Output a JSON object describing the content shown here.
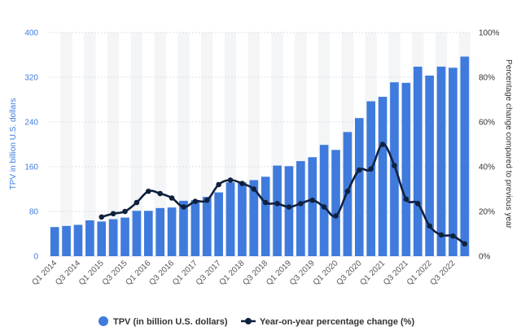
{
  "chart_data": {
    "type": "bar",
    "title": "",
    "categories": [
      "Q1 2014",
      "Q2 2014",
      "Q3 2014",
      "Q4 2014",
      "Q1 2015",
      "Q2 2015",
      "Q3 2015",
      "Q4 2015",
      "Q1 2016",
      "Q2 2016",
      "Q3 2016",
      "Q4 2016",
      "Q1 2017",
      "Q2 2017",
      "Q3 2017",
      "Q4 2017",
      "Q1 2018",
      "Q2 2018",
      "Q3 2018",
      "Q4 2018",
      "Q1 2019",
      "Q2 2019",
      "Q3 2019",
      "Q4 2019",
      "Q1 2020",
      "Q2 2020",
      "Q3 2020",
      "Q4 2020",
      "Q1 2021",
      "Q2 2021",
      "Q3 2021",
      "Q4 2021",
      "Q1 2022",
      "Q2 2022",
      "Q3 2022",
      "Q4 2022"
    ],
    "x_tick_labels": [
      "Q1 2014",
      "Q3 2014",
      "Q1 2015",
      "Q3 2015",
      "Q1 2016",
      "Q3 2016",
      "Q1 2017",
      "Q3 2017",
      "Q1 2018",
      "Q3 2018",
      "Q1 2019",
      "Q3 2019",
      "Q1 2020",
      "Q3 2020",
      "Q1 2021",
      "Q3 2021",
      "Q1 2022",
      "Q3 2022"
    ],
    "series": [
      {
        "name": "TPV (in billion U.S. dollars)",
        "type": "bar",
        "axis": "left",
        "color": "#3f7bdc",
        "values": [
          52,
          54,
          56,
          64,
          62,
          66,
          69,
          81,
          81,
          86,
          87,
          99,
          100,
          106,
          114,
          132,
          132,
          136,
          142,
          162,
          161,
          170,
          177,
          199,
          190,
          222,
          247,
          277,
          285,
          311,
          310,
          339,
          323,
          339,
          337,
          357
        ]
      },
      {
        "name": "Year-on-year percentage change (%)",
        "type": "line",
        "axis": "right",
        "color": "#10213f",
        "values": [
          null,
          null,
          null,
          null,
          17.5,
          19,
          20,
          24,
          29,
          28,
          26,
          22,
          24.5,
          25,
          32,
          34,
          32.5,
          30,
          24,
          23.5,
          22,
          23.5,
          25,
          22,
          18,
          29,
          38.5,
          39,
          50,
          40.5,
          25.5,
          23.5,
          13.5,
          9.5,
          9,
          5.5
        ]
      }
    ],
    "y_left": {
      "label": "TPV in billion U.S. dollars",
      "ylim": [
        0,
        400
      ],
      "ticks": [
        "0",
        "80",
        "160",
        "240",
        "320",
        "400"
      ],
      "color": "#3f7bdc"
    },
    "y_right": {
      "label": "Percentage change compared to previous year",
      "ylim": [
        0,
        100
      ],
      "ticks": [
        "0%",
        "20%",
        "40%",
        "60%",
        "80%",
        "100%"
      ]
    },
    "grid": true,
    "legend": {
      "position": "bottom-center",
      "items": [
        {
          "label": "TPV (in billion U.S. dollars)",
          "marker": "circle",
          "color": "#3f7bdc"
        },
        {
          "label": "Year-on-year percentage change (%)",
          "marker": "line-dot",
          "color": "#10213f"
        }
      ]
    },
    "colors": {
      "band": "#f4f5f7",
      "grid": "#dcdfe4",
      "tick_text": "#555555"
    }
  }
}
